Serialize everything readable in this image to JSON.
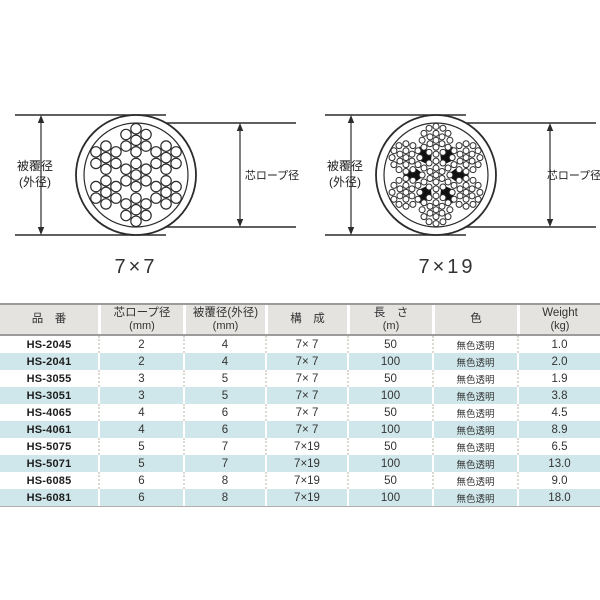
{
  "diagrams": [
    {
      "caption": "7×7",
      "outer_label_line1": "被覆径",
      "outer_label_line2": "(外径)",
      "core_label": "芯ロープ径",
      "wires_per_strand": 7,
      "has_black_voids": false
    },
    {
      "caption": "7×19",
      "outer_label_line1": "被覆径",
      "outer_label_line2": "(外径)",
      "core_label": "芯ロープ径",
      "wires_per_strand": 19,
      "has_black_voids": true
    }
  ],
  "table": {
    "columns": [
      {
        "label": "品　番",
        "sub": ""
      },
      {
        "label": "芯ロープ径",
        "sub": "(mm)"
      },
      {
        "label": "被覆径(外径)",
        "sub": "(mm)"
      },
      {
        "label": "構　成",
        "sub": ""
      },
      {
        "label": "長　さ",
        "sub": "(m)"
      },
      {
        "label": "色",
        "sub": ""
      },
      {
        "label": "Weight",
        "sub": "(kg)"
      }
    ],
    "rows": [
      {
        "part_no": "HS-2045",
        "core_dia": "2",
        "outer_dia": "4",
        "construction": "7× 7",
        "length": "50",
        "color": "無色透明",
        "weight": "1.0"
      },
      {
        "part_no": "HS-2041",
        "core_dia": "2",
        "outer_dia": "4",
        "construction": "7× 7",
        "length": "100",
        "color": "無色透明",
        "weight": "2.0"
      },
      {
        "part_no": "HS-3055",
        "core_dia": "3",
        "outer_dia": "5",
        "construction": "7× 7",
        "length": "50",
        "color": "無色透明",
        "weight": "1.9"
      },
      {
        "part_no": "HS-3051",
        "core_dia": "3",
        "outer_dia": "5",
        "construction": "7× 7",
        "length": "100",
        "color": "無色透明",
        "weight": "3.8"
      },
      {
        "part_no": "HS-4065",
        "core_dia": "4",
        "outer_dia": "6",
        "construction": "7× 7",
        "length": "50",
        "color": "無色透明",
        "weight": "4.5"
      },
      {
        "part_no": "HS-4061",
        "core_dia": "4",
        "outer_dia": "6",
        "construction": "7× 7",
        "length": "100",
        "color": "無色透明",
        "weight": "8.9"
      },
      {
        "part_no": "HS-5075",
        "core_dia": "5",
        "outer_dia": "7",
        "construction": "7×19",
        "length": "50",
        "color": "無色透明",
        "weight": "6.5"
      },
      {
        "part_no": "HS-5071",
        "core_dia": "5",
        "outer_dia": "7",
        "construction": "7×19",
        "length": "100",
        "color": "無色透明",
        "weight": "13.0"
      },
      {
        "part_no": "HS-6085",
        "core_dia": "6",
        "outer_dia": "8",
        "construction": "7×19",
        "length": "50",
        "color": "無色透明",
        "weight": "9.0"
      },
      {
        "part_no": "HS-6081",
        "core_dia": "6",
        "outer_dia": "8",
        "construction": "7×19",
        "length": "100",
        "color": "無色透明",
        "weight": "18.0"
      }
    ]
  },
  "colors": {
    "row_alt": "#cfe7ea",
    "header_bg": "#e5e3e0",
    "grid_line": "#9b9b9b",
    "diagram_stroke": "#2b2b2b",
    "text": "#333333"
  }
}
